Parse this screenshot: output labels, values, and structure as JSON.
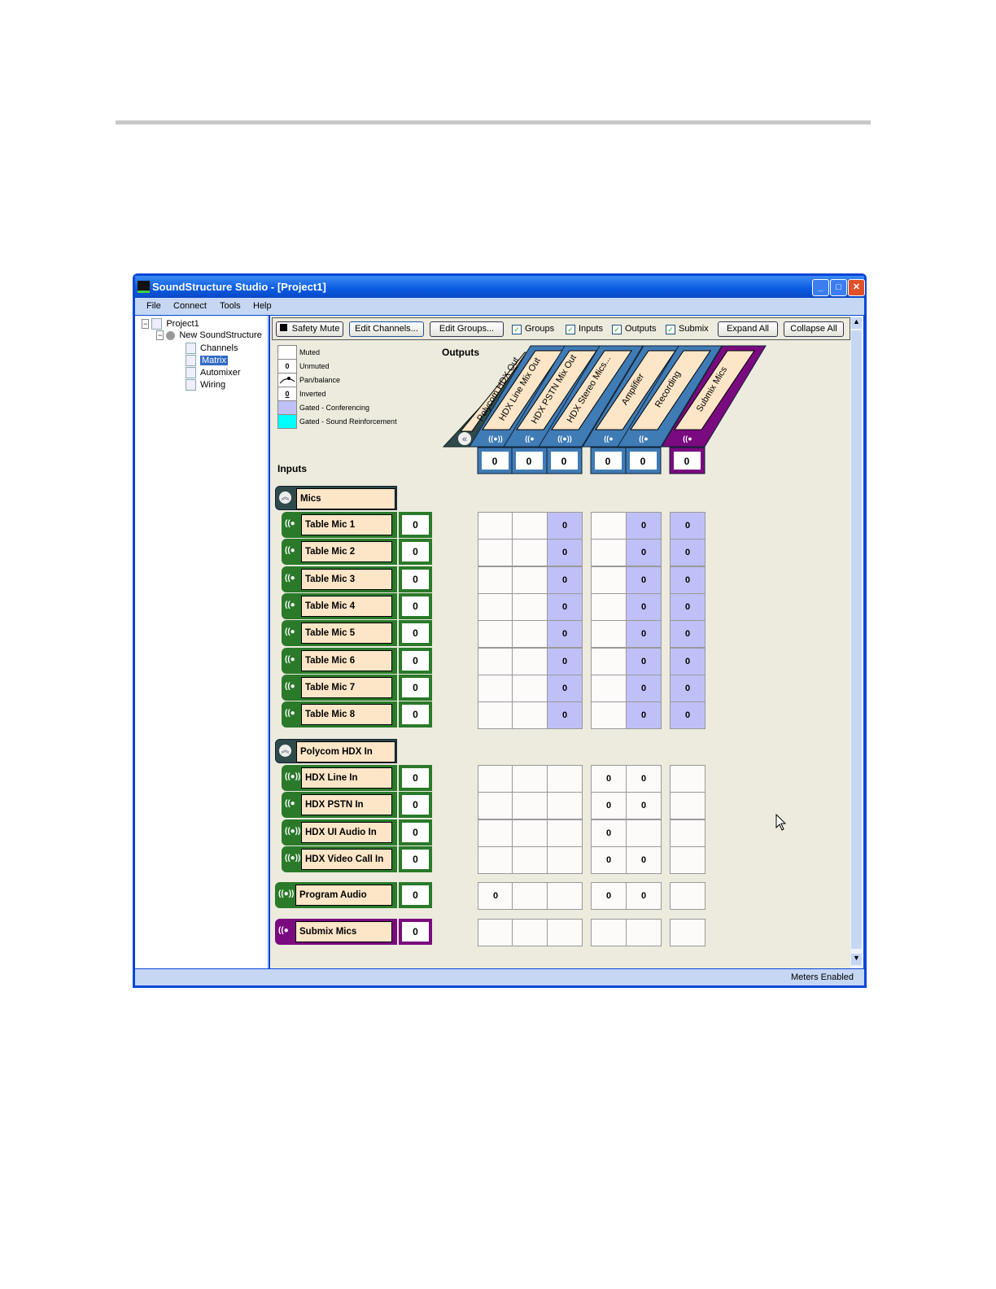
{
  "window": {
    "title": "SoundStructure Studio - [Project1]",
    "controls": [
      "_",
      "□",
      "✕"
    ]
  },
  "menu": [
    "File",
    "Connect",
    "Tools",
    "Help"
  ],
  "tree": {
    "project": "Project1",
    "device": "New SoundStructure",
    "items": [
      "Channels",
      "Matrix",
      "Automixer",
      "Wiring"
    ],
    "selected": "Matrix"
  },
  "toolbar": {
    "safety_mute": "Safety Mute",
    "edit_channels": "Edit Channels...",
    "edit_groups": "Edit Groups...",
    "checks": [
      {
        "label": "Groups",
        "checked": true
      },
      {
        "label": "Inputs",
        "checked": true
      },
      {
        "label": "Outputs",
        "checked": true
      },
      {
        "label": "Submix",
        "checked": true
      }
    ],
    "expand_all": "Expand All",
    "collapse_all": "Collapse All"
  },
  "legend": [
    {
      "swatch": "",
      "label": "Muted",
      "color": "#ffffff"
    },
    {
      "swatch": "0",
      "label": "Unmuted",
      "color": "#ffffff"
    },
    {
      "swatch": "pan",
      "label": "Pan/balance",
      "color": "#ffffff"
    },
    {
      "swatch": "0",
      "label": "Inverted",
      "color": "#ffffff",
      "underline": true
    },
    {
      "swatch": "",
      "label": "Gated - Conferencing",
      "color": "#c0c0f8"
    },
    {
      "swatch": "",
      "label": "Gated - Sound Reinforcement",
      "color": "#00ffff"
    }
  ],
  "outputs_label": "Outputs",
  "inputs_label": "Inputs",
  "output_group": {
    "label": "Polycom HDX Out",
    "color": "#2e4a4a"
  },
  "outputs": [
    {
      "label": "HDX Line Mix Out",
      "icon": "stereo",
      "gain": "0",
      "color": "#3f7bb5"
    },
    {
      "label": "HDX PSTN Mix Out",
      "icon": "mono",
      "gain": "0",
      "color": "#3f7bb5"
    },
    {
      "label": "HDX Stereo Mics...",
      "icon": "stereo",
      "gain": "0",
      "color": "#3f7bb5"
    },
    {
      "label": "Amplifier",
      "icon": "mono",
      "gain": "0",
      "color": "#3f7bb5"
    },
    {
      "label": "Recording",
      "icon": "mono",
      "gain": "0",
      "color": "#3f7bb5"
    },
    {
      "label": "Submix Mics",
      "icon": "mono",
      "gain": "0",
      "color": "#7a0a80"
    }
  ],
  "input_groups": [
    {
      "label": "Mics",
      "channels": [
        {
          "label": "Table Mic 1",
          "icon": "mono",
          "gain": "0",
          "cells": [
            "",
            "",
            "0g",
            "",
            "0g",
            "0g"
          ]
        },
        {
          "label": "Table Mic 2",
          "icon": "mono",
          "gain": "0",
          "cells": [
            "",
            "",
            "0g",
            "",
            "0g",
            "0g"
          ]
        },
        {
          "label": "Table Mic 3",
          "icon": "mono",
          "gain": "0",
          "cells": [
            "",
            "",
            "0g",
            "",
            "0g",
            "0g"
          ]
        },
        {
          "label": "Table Mic 4",
          "icon": "mono",
          "gain": "0",
          "cells": [
            "",
            "",
            "0g",
            "",
            "0g",
            "0g"
          ]
        },
        {
          "label": "Table Mic 5",
          "icon": "mono",
          "gain": "0",
          "cells": [
            "",
            "",
            "0g",
            "",
            "0g",
            "0g"
          ]
        },
        {
          "label": "Table Mic 6",
          "icon": "mono",
          "gain": "0",
          "cells": [
            "",
            "",
            "0g",
            "",
            "0g",
            "0g"
          ]
        },
        {
          "label": "Table Mic 7",
          "icon": "mono",
          "gain": "0",
          "cells": [
            "",
            "",
            "0g",
            "",
            "0g",
            "0g"
          ]
        },
        {
          "label": "Table Mic 8",
          "icon": "mono",
          "gain": "0",
          "cells": [
            "",
            "",
            "0g",
            "",
            "0g",
            "0g"
          ]
        }
      ]
    },
    {
      "label": "Polycom HDX In",
      "channels": [
        {
          "label": "HDX Line In",
          "icon": "stereo",
          "gain": "0",
          "cells": [
            "",
            "",
            "",
            "0",
            "0",
            ""
          ]
        },
        {
          "label": "HDX PSTN In",
          "icon": "mono",
          "gain": "0",
          "cells": [
            "",
            "",
            "",
            "0",
            "0",
            ""
          ]
        },
        {
          "label": "HDX UI Audio In",
          "icon": "stereo",
          "gain": "0",
          "cells": [
            "",
            "",
            "",
            "0",
            "",
            ""
          ]
        },
        {
          "label": "HDX Video Call In",
          "icon": "stereo",
          "gain": "0",
          "cells": [
            "",
            "",
            "",
            "0",
            "0",
            ""
          ]
        }
      ]
    }
  ],
  "standalone_inputs": [
    {
      "label": "Program Audio",
      "icon": "stereo",
      "gain": "0",
      "color": "#2a7a2a",
      "cells": [
        "0",
        "",
        "",
        "0",
        "0",
        ""
      ]
    },
    {
      "label": "Submix Mics",
      "icon": "mono",
      "gain": "0",
      "color": "#7a0a80",
      "cells": [
        "",
        "",
        "",
        "",
        "",
        ""
      ]
    }
  ],
  "icons": {
    "mono": "((●",
    "stereo": "((●))",
    "collapse": "«",
    "group_collapse": "︽"
  },
  "status": {
    "text": "Meters Enabled"
  },
  "colors": {
    "channel_green": "#2a7a2a",
    "group_dark": "#2e4a4a",
    "submix_purple": "#7a0a80",
    "gated_conf": "#c0c0f8",
    "label_beige": "#fde6c8"
  }
}
